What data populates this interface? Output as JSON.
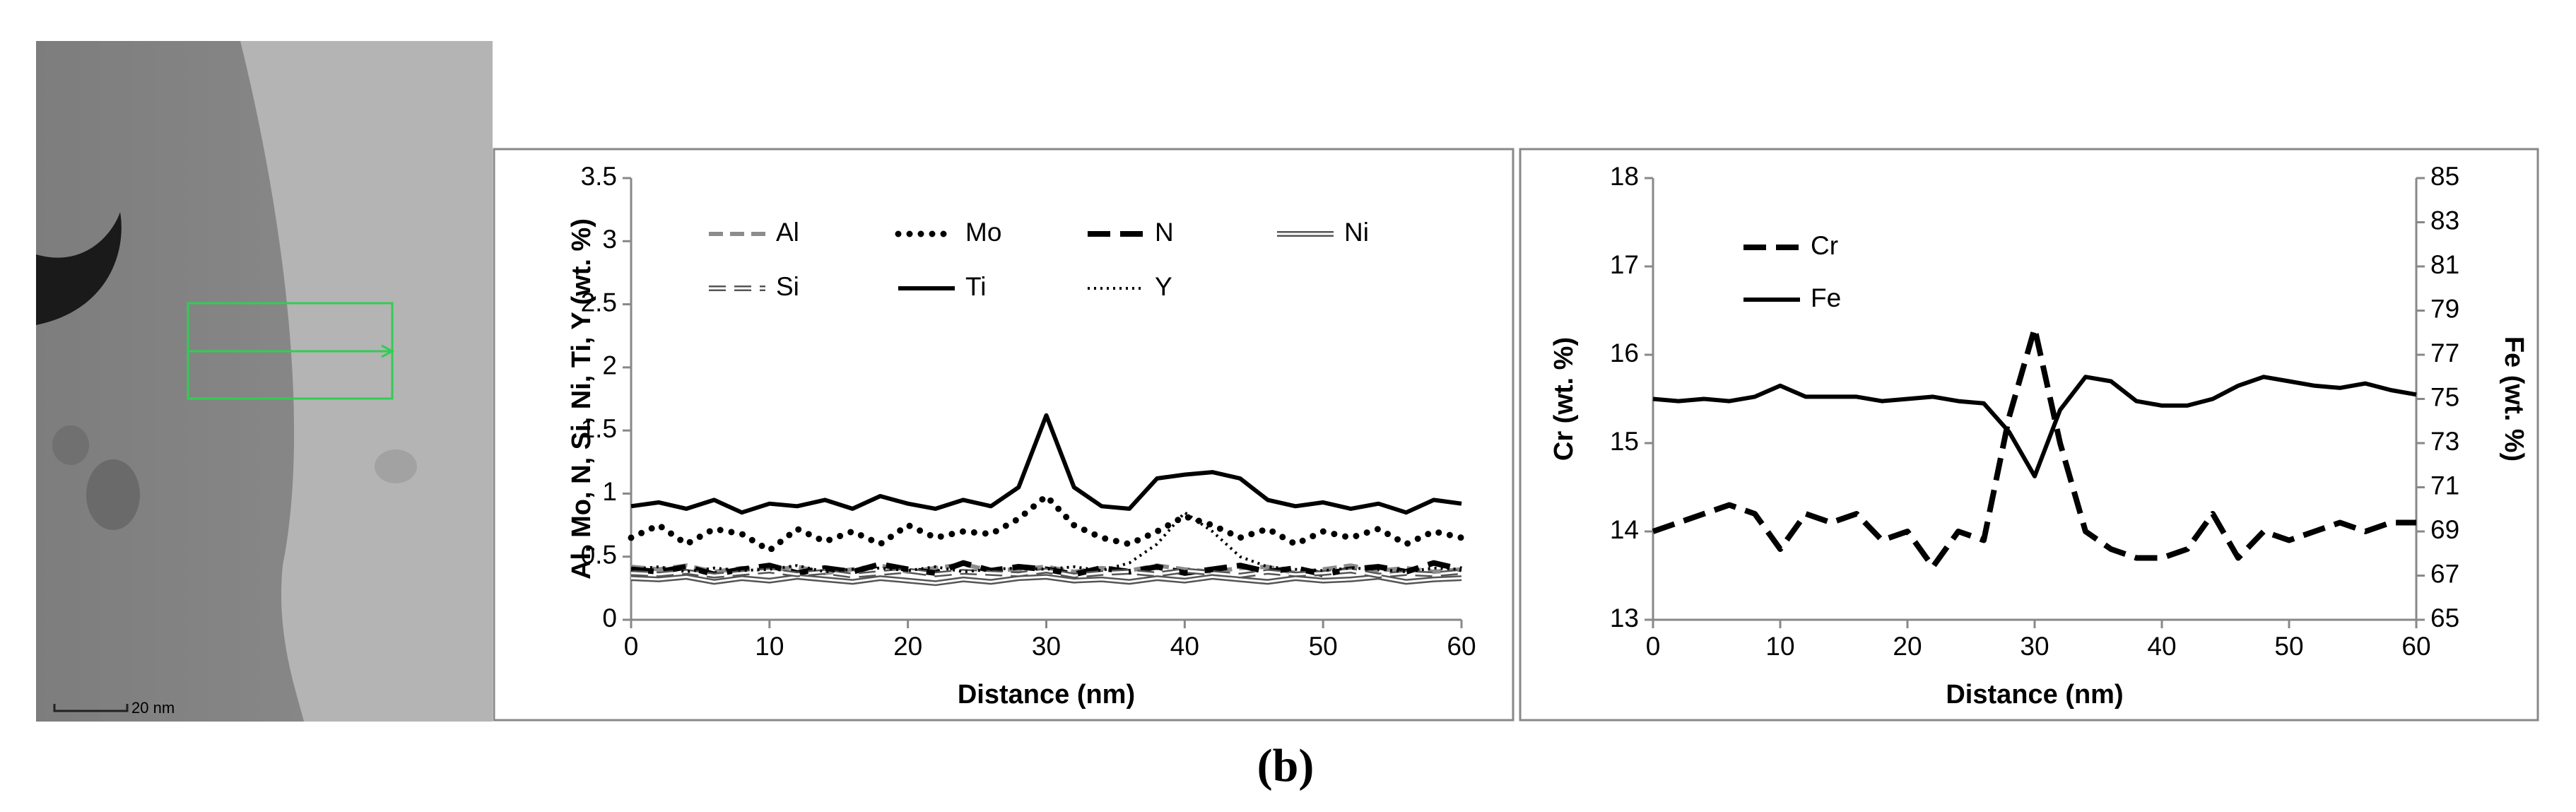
{
  "image": {
    "scale_bar": "20 nm"
  },
  "caption": "(b)",
  "chart_data": [
    {
      "type": "line",
      "grid": false,
      "legend": "top",
      "x_label": "Distance (nm)",
      "y_label": "Al, Mo, N, Si, Ni, Ti, Y (wt. %)",
      "xlim": [
        0,
        60
      ],
      "xticks": [
        0,
        10,
        20,
        30,
        40,
        50,
        60
      ],
      "ylim": [
        0,
        3.5
      ],
      "yticks": [
        0,
        0.5,
        1,
        1.5,
        2,
        2.5,
        3,
        3.5
      ],
      "x": [
        0,
        2,
        4,
        6,
        8,
        10,
        12,
        14,
        16,
        18,
        20,
        22,
        24,
        26,
        28,
        30,
        32,
        34,
        36,
        38,
        40,
        42,
        44,
        46,
        48,
        50,
        52,
        54,
        56,
        58,
        60
      ],
      "series": [
        {
          "name": "Al",
          "color": "#8c8c8c",
          "style": "dashed",
          "values": [
            0.42,
            0.4,
            0.43,
            0.38,
            0.41,
            0.39,
            0.42,
            0.37,
            0.4,
            0.43,
            0.38,
            0.41,
            0.44,
            0.39,
            0.4,
            0.42,
            0.38,
            0.41,
            0.39,
            0.43,
            0.4,
            0.38,
            0.41,
            0.42,
            0.37,
            0.4,
            0.43,
            0.39,
            0.41,
            0.38,
            0.4
          ]
        },
        {
          "name": "Mo",
          "color": "#000000",
          "style": "dotted",
          "values": [
            0.65,
            0.75,
            0.6,
            0.72,
            0.68,
            0.55,
            0.72,
            0.62,
            0.7,
            0.6,
            0.75,
            0.65,
            0.7,
            0.68,
            0.8,
            0.98,
            0.75,
            0.65,
            0.6,
            0.7,
            0.82,
            0.75,
            0.65,
            0.72,
            0.6,
            0.7,
            0.65,
            0.72,
            0.6,
            0.7,
            0.65
          ]
        },
        {
          "name": "N",
          "color": "#000000",
          "style": "long-dash",
          "values": [
            0.4,
            0.38,
            0.42,
            0.36,
            0.4,
            0.43,
            0.37,
            0.41,
            0.38,
            0.44,
            0.4,
            0.37,
            0.45,
            0.39,
            0.42,
            0.4,
            0.36,
            0.41,
            0.38,
            0.42,
            0.37,
            0.4,
            0.43,
            0.38,
            0.41,
            0.36,
            0.4,
            0.42,
            0.38,
            0.45,
            0.4
          ]
        },
        {
          "name": "Ni",
          "color": "#555555",
          "style": "double",
          "values": [
            0.33,
            0.32,
            0.34,
            0.3,
            0.33,
            0.31,
            0.34,
            0.32,
            0.3,
            0.33,
            0.31,
            0.29,
            0.32,
            0.3,
            0.33,
            0.34,
            0.31,
            0.32,
            0.3,
            0.33,
            0.31,
            0.34,
            0.32,
            0.3,
            0.33,
            0.31,
            0.32,
            0.34,
            0.3,
            0.32,
            0.33
          ]
        },
        {
          "name": "Si",
          "color": "#555555",
          "style": "double-dashed",
          "values": [
            0.37,
            0.36,
            0.38,
            0.35,
            0.37,
            0.39,
            0.36,
            0.38,
            0.35,
            0.37,
            0.39,
            0.36,
            0.38,
            0.37,
            0.36,
            0.39,
            0.35,
            0.37,
            0.38,
            0.36,
            0.39,
            0.37,
            0.35,
            0.38,
            0.36,
            0.37,
            0.39,
            0.35,
            0.37,
            0.36,
            0.38
          ]
        },
        {
          "name": "Ti",
          "color": "#000000",
          "style": "solid",
          "values": [
            0.9,
            0.93,
            0.88,
            0.95,
            0.85,
            0.92,
            0.9,
            0.95,
            0.88,
            0.98,
            0.92,
            0.88,
            0.95,
            0.9,
            1.05,
            1.62,
            1.05,
            0.9,
            0.88,
            1.12,
            1.15,
            1.17,
            1.12,
            0.95,
            0.9,
            0.93,
            0.88,
            0.92,
            0.85,
            0.95,
            0.92
          ]
        },
        {
          "name": "Y",
          "color": "#000000",
          "style": "fine-dotted",
          "values": [
            0.4,
            0.42,
            0.38,
            0.41,
            0.39,
            0.4,
            0.43,
            0.38,
            0.4,
            0.41,
            0.39,
            0.42,
            0.38,
            0.4,
            0.41,
            0.4,
            0.42,
            0.39,
            0.45,
            0.6,
            0.85,
            0.7,
            0.5,
            0.42,
            0.4,
            0.39,
            0.41,
            0.4,
            0.38,
            0.41,
            0.4
          ]
        }
      ]
    },
    {
      "type": "line",
      "grid": false,
      "legend": "top-left",
      "x_label": "Distance (nm)",
      "y_label": "Cr (wt. %)",
      "y2_label": "Fe (wt. %)",
      "xlim": [
        0,
        60
      ],
      "xticks": [
        0,
        10,
        20,
        30,
        40,
        50,
        60
      ],
      "ylim": [
        13,
        18
      ],
      "yticks": [
        13,
        14,
        15,
        16,
        17,
        18
      ],
      "y2lim": [
        65,
        85
      ],
      "y2ticks": [
        65,
        67,
        69,
        71,
        73,
        75,
        77,
        79,
        81,
        83,
        85
      ],
      "x": [
        0,
        2,
        4,
        6,
        8,
        10,
        12,
        14,
        16,
        18,
        20,
        22,
        24,
        26,
        28,
        30,
        32,
        34,
        36,
        38,
        40,
        42,
        44,
        46,
        48,
        50,
        52,
        54,
        56,
        58,
        60
      ],
      "series": [
        {
          "name": "Cr",
          "color": "#000000",
          "style": "long-dash",
          "values": [
            14.0,
            14.1,
            14.2,
            14.3,
            14.2,
            13.8,
            14.2,
            14.1,
            14.2,
            13.9,
            14.0,
            13.6,
            14.0,
            13.9,
            15.3,
            16.3,
            15.0,
            14.0,
            13.8,
            13.7,
            13.7,
            13.8,
            14.2,
            13.7,
            14.0,
            13.9,
            14.0,
            14.1,
            14.0,
            14.1,
            14.1
          ]
        },
        {
          "name": "Fe",
          "color": "#000000",
          "style": "solid",
          "axis": "y2",
          "values": [
            75.0,
            74.9,
            75.0,
            74.9,
            75.1,
            75.6,
            75.1,
            75.1,
            75.1,
            74.9,
            75.0,
            75.1,
            74.9,
            74.8,
            73.5,
            71.5,
            74.5,
            76.0,
            75.8,
            74.9,
            74.7,
            74.7,
            75.0,
            75.6,
            76.0,
            75.8,
            75.6,
            75.5,
            75.7,
            75.4,
            75.2
          ]
        }
      ]
    }
  ]
}
